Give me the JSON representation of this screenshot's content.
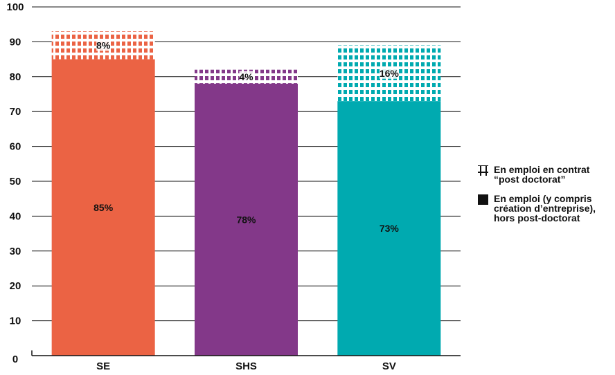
{
  "chart_data": {
    "type": "bar",
    "stacked": true,
    "categories": [
      "SE",
      "SHS",
      "SV"
    ],
    "colors": [
      "#EB6344",
      "#833889",
      "#00AAB0"
    ],
    "series": [
      {
        "name": "En emploi (y compris création d’entreprise), hors post-doctorat",
        "values": [
          85,
          78,
          73
        ],
        "labels": [
          "85%",
          "78%",
          "73%"
        ],
        "pattern": "solid"
      },
      {
        "name": "En emploi en contrat “post doctorat”",
        "values": [
          8,
          4,
          16
        ],
        "labels": [
          "8%",
          "4%",
          "16%"
        ],
        "pattern": "grid"
      }
    ],
    "ylim": [
      0,
      100
    ],
    "yticks": [
      "0",
      "10",
      "20",
      "30",
      "40",
      "50",
      "60",
      "70",
      "80",
      "90",
      "100"
    ],
    "grid": true,
    "legend_position": "right"
  },
  "legend": {
    "items": [
      {
        "label_lines": [
          "En emploi en contrat",
          "“post doctorat”"
        ],
        "icon": "hatch-grid-icon"
      },
      {
        "label_lines": [
          "En emploi (y compris",
          "création d’entreprise),",
          "hors post-doctorat"
        ],
        "icon": "solid-square-icon"
      }
    ]
  }
}
